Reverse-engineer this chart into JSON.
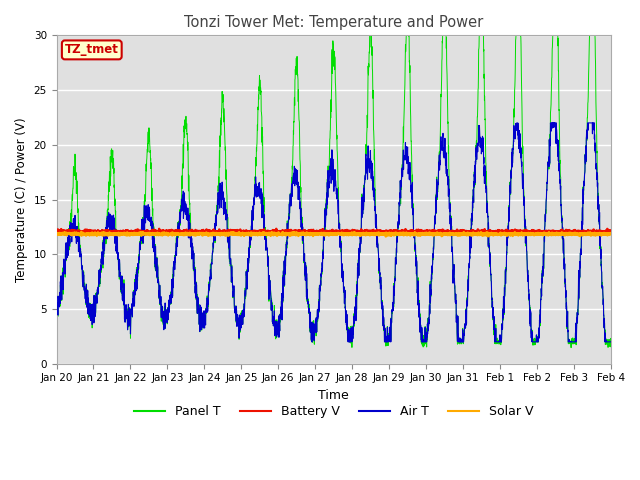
{
  "title": "Tonzi Tower Met: Temperature and Power",
  "xlabel": "Time",
  "ylabel": "Temperature (C) / Power (V)",
  "ylim": [
    0,
    30
  ],
  "yticks": [
    0,
    5,
    10,
    15,
    20,
    25,
    30
  ],
  "x_labels": [
    "Jan 20",
    "Jan 21",
    "Jan 22",
    "Jan 23",
    "Jan 24",
    "Jan 25",
    "Jan 26",
    "Jan 27",
    "Jan 28",
    "Jan 29",
    "Jan 30",
    "Jan 31",
    "Feb 1",
    "Feb 2",
    "Feb 3",
    "Feb 4"
  ],
  "n_points": 2880,
  "panel_color": "#00dd00",
  "battery_color": "#ee1100",
  "air_color": "#0000cc",
  "solar_color": "#ffaa00",
  "bg_inner": "#e0e0e0",
  "bg_outer": "#ffffff",
  "annotation_text": "TZ_tmet",
  "annotation_bg": "#ffffcc",
  "annotation_border": "#cc0000",
  "legend_labels": [
    "Panel T",
    "Battery V",
    "Air T",
    "Solar V"
  ]
}
